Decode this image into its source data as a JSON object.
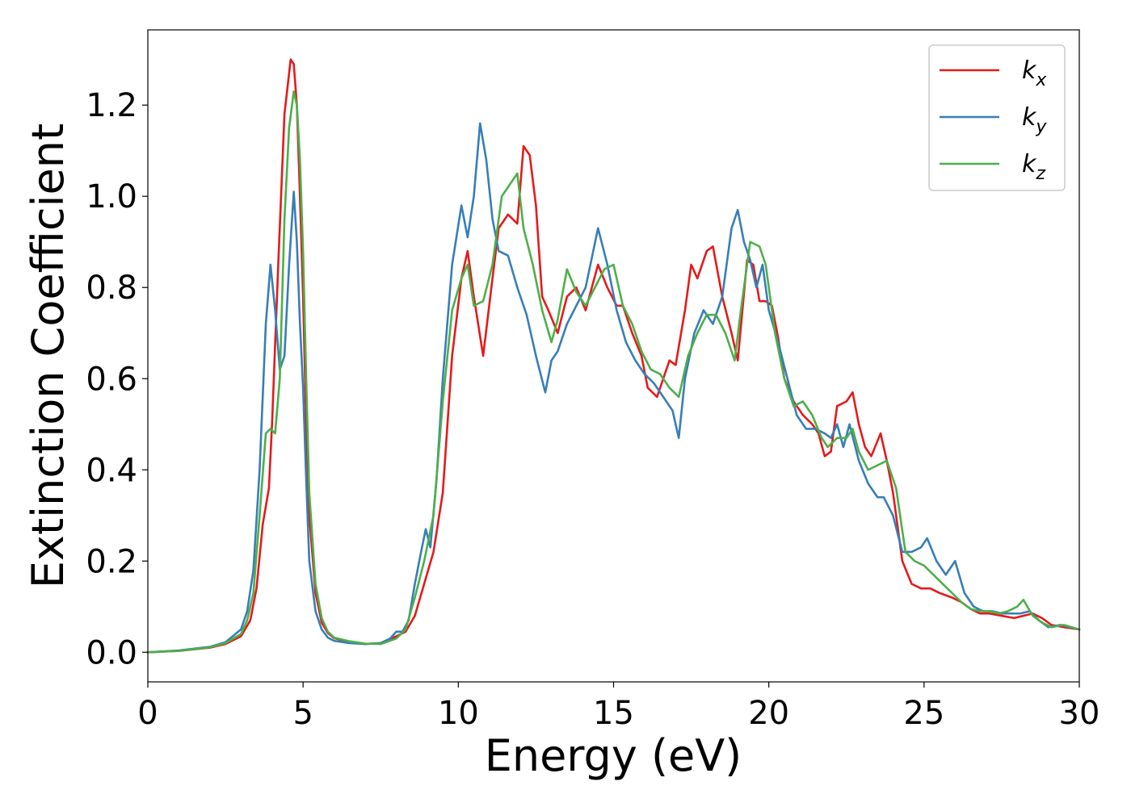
{
  "chart_data": {
    "type": "line",
    "title": "",
    "xlabel": "Energy (eV)",
    "ylabel": "Extinction Coefficient",
    "xlim": [
      0,
      30
    ],
    "ylim": [
      -0.065,
      1.365
    ],
    "xticks": [
      0,
      5,
      10,
      15,
      20,
      25,
      30
    ],
    "yticks": [
      0.0,
      0.2,
      0.4,
      0.6,
      0.8,
      1.0,
      1.2
    ],
    "xtick_labels": [
      "0",
      "5",
      "10",
      "15",
      "20",
      "25",
      "30"
    ],
    "ytick_labels": [
      "0.0",
      "0.2",
      "0.4",
      "0.6",
      "0.8",
      "1.0",
      "1.2"
    ],
    "grid": false,
    "legend_position": "top-right",
    "series": [
      {
        "name": "k_x",
        "label_base": "k",
        "label_sub": "x",
        "color": "#e41a1c",
        "x": [
          0,
          1,
          2,
          2.5,
          3,
          3.3,
          3.5,
          3.7,
          3.9,
          4.0,
          4.2,
          4.4,
          4.6,
          4.7,
          4.8,
          4.9,
          5.0,
          5.1,
          5.2,
          5.4,
          5.6,
          5.8,
          6.0,
          6.5,
          7.0,
          7.5,
          8.0,
          8.3,
          8.6,
          8.9,
          9.2,
          9.5,
          9.8,
          10.1,
          10.3,
          10.5,
          10.8,
          11.1,
          11.3,
          11.6,
          11.9,
          12.1,
          12.3,
          12.5,
          12.7,
          12.9,
          13.2,
          13.5,
          13.8,
          14.1,
          14.5,
          14.8,
          15.1,
          15.3,
          15.6,
          15.9,
          16.1,
          16.4,
          16.6,
          16.8,
          17.0,
          17.3,
          17.5,
          17.7,
          18.0,
          18.2,
          18.5,
          18.8,
          19.0,
          19.3,
          19.5,
          19.7,
          19.9,
          20.1,
          20.3,
          20.5,
          20.8,
          21.1,
          21.4,
          21.6,
          21.8,
          22.0,
          22.2,
          22.5,
          22.7,
          22.9,
          23.1,
          23.3,
          23.6,
          23.8,
          24.0,
          24.3,
          24.6,
          24.9,
          25.2,
          25.5,
          25.9,
          26.2,
          26.5,
          26.8,
          27.1,
          27.5,
          27.9,
          28.2,
          28.5,
          28.8,
          29.1,
          29.5,
          30.0
        ],
        "y": [
          0.0,
          0.003,
          0.01,
          0.018,
          0.035,
          0.07,
          0.14,
          0.28,
          0.36,
          0.5,
          0.85,
          1.18,
          1.3,
          1.29,
          1.2,
          1.0,
          0.78,
          0.5,
          0.3,
          0.13,
          0.065,
          0.042,
          0.031,
          0.022,
          0.018,
          0.02,
          0.035,
          0.045,
          0.08,
          0.15,
          0.22,
          0.35,
          0.65,
          0.82,
          0.88,
          0.78,
          0.65,
          0.82,
          0.93,
          0.96,
          0.94,
          1.11,
          1.09,
          0.98,
          0.78,
          0.75,
          0.7,
          0.78,
          0.8,
          0.75,
          0.85,
          0.8,
          0.76,
          0.76,
          0.7,
          0.65,
          0.58,
          0.56,
          0.6,
          0.64,
          0.63,
          0.75,
          0.85,
          0.82,
          0.88,
          0.89,
          0.78,
          0.7,
          0.64,
          0.86,
          0.85,
          0.77,
          0.77,
          0.76,
          0.69,
          0.6,
          0.55,
          0.52,
          0.5,
          0.48,
          0.43,
          0.44,
          0.54,
          0.55,
          0.57,
          0.5,
          0.45,
          0.43,
          0.48,
          0.42,
          0.35,
          0.2,
          0.15,
          0.14,
          0.14,
          0.13,
          0.12,
          0.11,
          0.095,
          0.085,
          0.085,
          0.08,
          0.075,
          0.08,
          0.085,
          0.075,
          0.06,
          0.055,
          0.05
        ]
      },
      {
        "name": "k_y",
        "label_base": "k",
        "label_sub": "y",
        "color": "#377eb8",
        "x": [
          0,
          1,
          2,
          2.5,
          3,
          3.2,
          3.4,
          3.6,
          3.8,
          3.95,
          4.1,
          4.25,
          4.4,
          4.55,
          4.7,
          4.8,
          4.9,
          5.0,
          5.1,
          5.2,
          5.4,
          5.6,
          5.8,
          6.0,
          6.5,
          7.0,
          7.5,
          7.8,
          8.0,
          8.2,
          8.4,
          8.6,
          8.8,
          8.95,
          9.1,
          9.3,
          9.5,
          9.8,
          10.1,
          10.3,
          10.5,
          10.7,
          10.9,
          11.1,
          11.3,
          11.6,
          11.9,
          12.2,
          12.5,
          12.8,
          13.0,
          13.2,
          13.5,
          13.8,
          14.1,
          14.5,
          14.8,
          15.1,
          15.4,
          15.7,
          16.0,
          16.3,
          16.6,
          16.9,
          17.1,
          17.3,
          17.6,
          17.9,
          18.2,
          18.5,
          18.8,
          19.0,
          19.2,
          19.4,
          19.6,
          19.8,
          20.0,
          20.3,
          20.6,
          20.9,
          21.2,
          21.5,
          21.8,
          22.0,
          22.2,
          22.4,
          22.6,
          22.9,
          23.2,
          23.5,
          23.7,
          24.0,
          24.3,
          24.6,
          24.9,
          25.1,
          25.4,
          25.7,
          26.0,
          26.3,
          26.6,
          26.9,
          27.2,
          27.5,
          27.8,
          28.1,
          28.4,
          28.7,
          29.0,
          29.4,
          30.0
        ],
        "y": [
          0.0,
          0.004,
          0.012,
          0.022,
          0.05,
          0.09,
          0.18,
          0.4,
          0.72,
          0.85,
          0.75,
          0.62,
          0.65,
          0.85,
          1.01,
          0.9,
          0.72,
          0.58,
          0.38,
          0.2,
          0.09,
          0.05,
          0.032,
          0.025,
          0.02,
          0.018,
          0.02,
          0.03,
          0.045,
          0.045,
          0.07,
          0.15,
          0.22,
          0.27,
          0.23,
          0.38,
          0.6,
          0.85,
          0.98,
          0.91,
          1.0,
          1.16,
          1.08,
          0.95,
          0.88,
          0.87,
          0.8,
          0.74,
          0.65,
          0.57,
          0.64,
          0.66,
          0.72,
          0.76,
          0.8,
          0.93,
          0.85,
          0.75,
          0.68,
          0.64,
          0.61,
          0.59,
          0.56,
          0.53,
          0.47,
          0.6,
          0.7,
          0.75,
          0.72,
          0.78,
          0.93,
          0.97,
          0.9,
          0.86,
          0.8,
          0.85,
          0.75,
          0.68,
          0.6,
          0.52,
          0.49,
          0.49,
          0.48,
          0.47,
          0.5,
          0.45,
          0.5,
          0.42,
          0.37,
          0.34,
          0.34,
          0.3,
          0.22,
          0.22,
          0.23,
          0.25,
          0.2,
          0.17,
          0.2,
          0.13,
          0.1,
          0.09,
          0.09,
          0.085,
          0.085,
          0.085,
          0.09,
          0.07,
          0.055,
          0.06,
          0.05
        ]
      },
      {
        "name": "k_z",
        "label_base": "k",
        "label_sub": "z",
        "color": "#4daf4a",
        "x": [
          0,
          1,
          2,
          2.5,
          3,
          3.2,
          3.4,
          3.6,
          3.8,
          3.95,
          4.1,
          4.25,
          4.4,
          4.55,
          4.7,
          4.8,
          4.9,
          5.0,
          5.1,
          5.2,
          5.4,
          5.6,
          5.8,
          6.0,
          6.5,
          7.0,
          7.5,
          8.0,
          8.3,
          8.6,
          8.9,
          9.2,
          9.5,
          9.8,
          10.1,
          10.3,
          10.5,
          10.8,
          11.1,
          11.4,
          11.7,
          11.9,
          12.1,
          12.4,
          12.7,
          13.0,
          13.2,
          13.5,
          13.8,
          14.1,
          14.4,
          14.7,
          15.0,
          15.3,
          15.6,
          15.9,
          16.2,
          16.5,
          16.8,
          17.1,
          17.4,
          17.7,
          18.0,
          18.3,
          18.6,
          18.9,
          19.1,
          19.4,
          19.7,
          19.9,
          20.2,
          20.5,
          20.8,
          21.1,
          21.4,
          21.7,
          21.9,
          22.2,
          22.5,
          22.7,
          22.9,
          23.2,
          23.5,
          23.8,
          24.1,
          24.4,
          24.7,
          25.0,
          25.3,
          25.6,
          25.9,
          26.2,
          26.5,
          26.8,
          27.1,
          27.4,
          27.7,
          28.0,
          28.2,
          28.5,
          28.8,
          29.1,
          29.5,
          30.0
        ],
        "y": [
          0.0,
          0.003,
          0.011,
          0.02,
          0.04,
          0.07,
          0.13,
          0.3,
          0.48,
          0.49,
          0.48,
          0.6,
          0.95,
          1.15,
          1.23,
          1.2,
          1.08,
          0.88,
          0.6,
          0.35,
          0.15,
          0.075,
          0.045,
          0.032,
          0.024,
          0.019,
          0.018,
          0.03,
          0.05,
          0.12,
          0.2,
          0.3,
          0.55,
          0.75,
          0.82,
          0.85,
          0.76,
          0.77,
          0.85,
          1.0,
          1.03,
          1.05,
          0.93,
          0.85,
          0.75,
          0.68,
          0.73,
          0.84,
          0.79,
          0.76,
          0.8,
          0.84,
          0.85,
          0.76,
          0.72,
          0.66,
          0.62,
          0.61,
          0.58,
          0.56,
          0.65,
          0.7,
          0.74,
          0.74,
          0.7,
          0.64,
          0.75,
          0.9,
          0.89,
          0.85,
          0.7,
          0.6,
          0.54,
          0.55,
          0.52,
          0.47,
          0.45,
          0.47,
          0.47,
          0.49,
          0.44,
          0.4,
          0.41,
          0.42,
          0.36,
          0.22,
          0.2,
          0.19,
          0.17,
          0.15,
          0.13,
          0.11,
          0.095,
          0.09,
          0.09,
          0.085,
          0.09,
          0.1,
          0.115,
          0.08,
          0.065,
          0.055,
          0.06,
          0.05
        ]
      }
    ]
  }
}
